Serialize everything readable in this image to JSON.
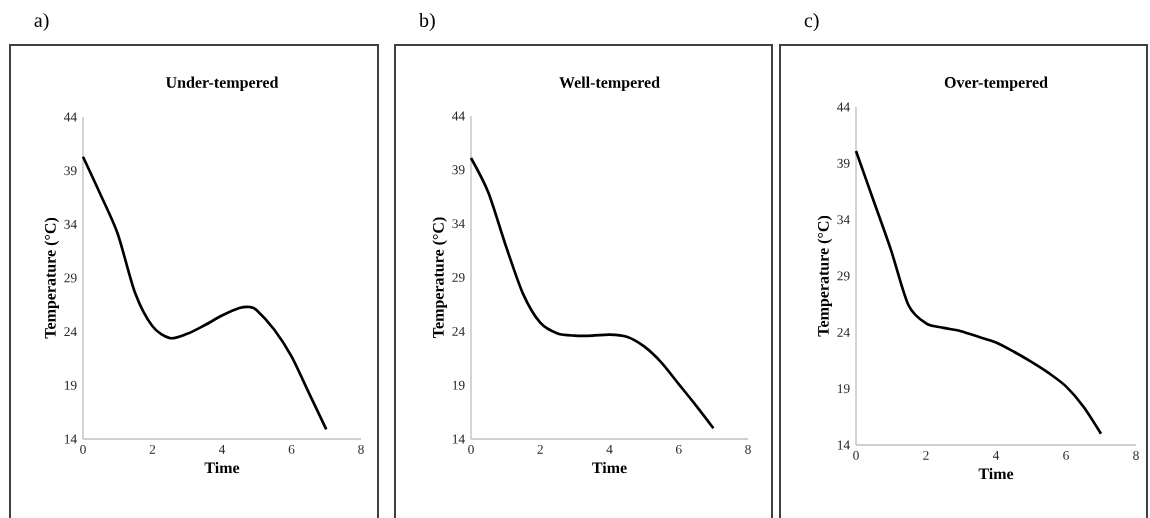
{
  "chart_data": [
    {
      "type": "line",
      "title": "Under-tempered",
      "xlabel": "Time",
      "ylabel": "Temperature (°C)",
      "annotations": [
        "a)"
      ],
      "xlim": [
        0,
        8
      ],
      "ylim": [
        14,
        44
      ],
      "xticks": [
        0,
        2,
        4,
        6,
        8
      ],
      "yticks": [
        14,
        19,
        24,
        29,
        34,
        39,
        44
      ],
      "grid": false,
      "marker": "none",
      "line_style": "solid",
      "series": [
        {
          "color": "#000000",
          "x": [
            0,
            0.5,
            1,
            1.5,
            2,
            2.5,
            3,
            3.5,
            4,
            4.5,
            4.8,
            5,
            5.5,
            6,
            6.5,
            7
          ],
          "values": [
            40.3,
            36.8,
            33.1,
            27.6,
            24.5,
            23.4,
            23.8,
            24.6,
            25.5,
            26.2,
            26.3,
            26.0,
            24.2,
            21.7,
            18.3,
            14.9
          ]
        }
      ]
    },
    {
      "type": "line",
      "title": "Well-tempered",
      "xlabel": "Time",
      "ylabel": "Temperature (°C)",
      "annotations": [
        "b)"
      ],
      "xlim": [
        0,
        8
      ],
      "ylim": [
        14,
        44
      ],
      "xticks": [
        0,
        2,
        4,
        6,
        8
      ],
      "yticks": [
        14,
        19,
        24,
        29,
        34,
        39,
        44
      ],
      "grid": false,
      "marker": "none",
      "line_style": "solid",
      "series": [
        {
          "color": "#000000",
          "x": [
            0,
            0.5,
            1,
            1.5,
            2,
            2.5,
            3,
            3.5,
            4,
            4.5,
            5,
            5.5,
            6,
            6.5,
            7
          ],
          "values": [
            40.1,
            36.9,
            32.0,
            27.5,
            24.8,
            23.8,
            23.6,
            23.6,
            23.7,
            23.5,
            22.6,
            21.1,
            19.1,
            17.1,
            15.0
          ]
        }
      ]
    },
    {
      "type": "line",
      "title": "Over-tempered",
      "xlabel": "Time",
      "ylabel": "Temperature (°C)",
      "annotations": [
        "c)"
      ],
      "xlim": [
        0,
        8
      ],
      "ylim": [
        14,
        44
      ],
      "xticks": [
        0,
        2,
        4,
        6,
        8
      ],
      "yticks": [
        14,
        19,
        24,
        29,
        34,
        39,
        44
      ],
      "grid": false,
      "marker": "none",
      "line_style": "solid",
      "series": [
        {
          "color": "#000000",
          "x": [
            0,
            0.5,
            1,
            1.5,
            2,
            2.5,
            3,
            3.5,
            4,
            4.5,
            5,
            5.5,
            6,
            6.5,
            7
          ],
          "values": [
            40.1,
            35.7,
            31.3,
            26.4,
            24.8,
            24.4,
            24.1,
            23.6,
            23.1,
            22.3,
            21.4,
            20.4,
            19.2,
            17.4,
            15.0
          ]
        }
      ]
    }
  ]
}
